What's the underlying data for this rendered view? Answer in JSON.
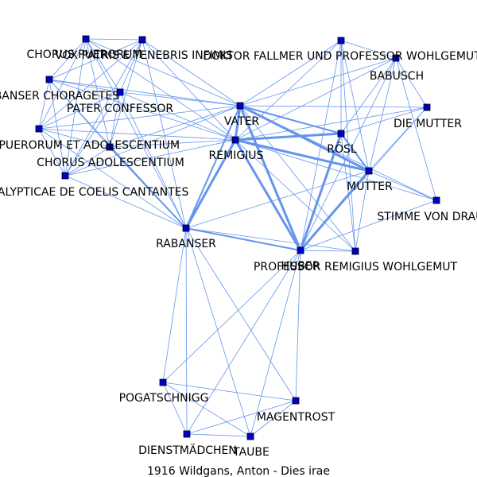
{
  "caption": "1916  Wildgans,  Anton  -  Dies  irae",
  "colors": {
    "edge": "#6495ed",
    "node_fill": "#0000cd",
    "node_stroke": "#000000"
  },
  "nodes": [
    {
      "id": "chorus_puerorum",
      "label": "CHORUS PUERORUM"
    },
    {
      "id": "vox_patris",
      "label": "VOX PATRIS E TENEBRIS INFIMIS"
    },
    {
      "id": "doktor_fallmer",
      "label": "DOKTOR FALLMER UND PROFESSOR WOHLGEMUT"
    },
    {
      "id": "babusch",
      "label": "BABUSCH"
    },
    {
      "id": "rabanser_choragetes",
      "label": "RABANSER CHORAGETES"
    },
    {
      "id": "pater_confessor",
      "label": "PATER CONFESSOR"
    },
    {
      "id": "vater",
      "label": "VATER"
    },
    {
      "id": "die_mutter",
      "label": "DIE MUTTER"
    },
    {
      "id": "chorus_puerorum_adolescentium",
      "label": "CHORUS PUERORUM ET ADOLESCENTIUM"
    },
    {
      "id": "remigius",
      "label": "REMIGIUS"
    },
    {
      "id": "rosl",
      "label": "RÖSL"
    },
    {
      "id": "chorus_adolescentium",
      "label": "CHORUS ADOLESCENTIUM"
    },
    {
      "id": "mutter",
      "label": "MUTTER"
    },
    {
      "id": "apokalypticae",
      "label": "VOCES APOKALYPTICAE DE COELIS CANTANTES"
    },
    {
      "id": "stimme",
      "label": "STIMME VON DRAUSSEN"
    },
    {
      "id": "rabanser",
      "label": "RABANSER"
    },
    {
      "id": "huber",
      "label": "HUBER"
    },
    {
      "id": "prof_remigius",
      "label": "PROFESSOR REMIGIUS WOHLGEMUT"
    },
    {
      "id": "pogatschnigg",
      "label": "POGATSCHNIGG"
    },
    {
      "id": "magentrost",
      "label": "MAGENTROST"
    },
    {
      "id": "dienstmaedchen",
      "label": "DIENSTMÄDCHEN"
    },
    {
      "id": "taube",
      "label": "TAUBE"
    }
  ],
  "edges": [
    [
      "chorus_puerorum",
      "vox_patris",
      1
    ],
    [
      "chorus_puerorum",
      "rabanser_choragetes",
      1
    ],
    [
      "chorus_puerorum",
      "pater_confessor",
      1
    ],
    [
      "chorus_puerorum",
      "vater",
      1
    ],
    [
      "chorus_puerorum",
      "remigius",
      1
    ],
    [
      "chorus_puerorum",
      "chorus_puerorum_adolescentium",
      1
    ],
    [
      "chorus_puerorum",
      "chorus_adolescentium",
      1
    ],
    [
      "chorus_puerorum",
      "apokalypticae",
      1
    ],
    [
      "chorus_puerorum",
      "rabanser",
      1
    ],
    [
      "vox_patris",
      "rabanser_choragetes",
      1
    ],
    [
      "vox_patris",
      "pater_confessor",
      1
    ],
    [
      "vox_patris",
      "vater",
      1
    ],
    [
      "vox_patris",
      "remigius",
      1
    ],
    [
      "vox_patris",
      "chorus_puerorum_adolescentium",
      1
    ],
    [
      "vox_patris",
      "chorus_adolescentium",
      1
    ],
    [
      "vox_patris",
      "apokalypticae",
      1
    ],
    [
      "vox_patris",
      "rabanser",
      1
    ],
    [
      "rabanser_choragetes",
      "pater_confessor",
      1
    ],
    [
      "rabanser_choragetes",
      "vater",
      1
    ],
    [
      "rabanser_choragetes",
      "remigius",
      1
    ],
    [
      "rabanser_choragetes",
      "chorus_puerorum_adolescentium",
      1
    ],
    [
      "rabanser_choragetes",
      "chorus_adolescentium",
      1
    ],
    [
      "rabanser_choragetes",
      "apokalypticae",
      1
    ],
    [
      "rabanser_choragetes",
      "rabanser",
      1
    ],
    [
      "pater_confessor",
      "vater",
      1
    ],
    [
      "pater_confessor",
      "remigius",
      1
    ],
    [
      "pater_confessor",
      "chorus_puerorum_adolescentium",
      1
    ],
    [
      "pater_confessor",
      "chorus_adolescentium",
      1
    ],
    [
      "pater_confessor",
      "apokalypticae",
      1
    ],
    [
      "pater_confessor",
      "rabanser",
      1
    ],
    [
      "chorus_puerorum_adolescentium",
      "chorus_adolescentium",
      1
    ],
    [
      "chorus_puerorum_adolescentium",
      "apokalypticae",
      1
    ],
    [
      "chorus_puerorum_adolescentium",
      "remigius",
      1
    ],
    [
      "chorus_puerorum_adolescentium",
      "vater",
      1
    ],
    [
      "chorus_puerorum_adolescentium",
      "rabanser",
      1
    ],
    [
      "chorus_adolescentium",
      "apokalypticae",
      1
    ],
    [
      "chorus_adolescentium",
      "remigius",
      1
    ],
    [
      "chorus_adolescentium",
      "vater",
      1
    ],
    [
      "chorus_adolescentium",
      "rabanser",
      2
    ],
    [
      "apokalypticae",
      "remigius",
      1
    ],
    [
      "apokalypticae",
      "vater",
      1
    ],
    [
      "apokalypticae",
      "rabanser",
      1
    ],
    [
      "doktor_fallmer",
      "babusch",
      1
    ],
    [
      "doktor_fallmer",
      "vater",
      1
    ],
    [
      "doktor_fallmer",
      "rosl",
      1
    ],
    [
      "doktor_fallmer",
      "mutter",
      1
    ],
    [
      "doktor_fallmer",
      "remigius",
      1
    ],
    [
      "doktor_fallmer",
      "huber",
      1
    ],
    [
      "doktor_fallmer",
      "prof_remigius",
      1
    ],
    [
      "babusch",
      "vater",
      1
    ],
    [
      "babusch",
      "die_mutter",
      1
    ],
    [
      "babusch",
      "rosl",
      1
    ],
    [
      "babusch",
      "mutter",
      1
    ],
    [
      "babusch",
      "remigius",
      1
    ],
    [
      "babusch",
      "huber",
      1
    ],
    [
      "babusch",
      "stimme",
      1
    ],
    [
      "vater",
      "die_mutter",
      1
    ],
    [
      "vater",
      "remigius",
      3
    ],
    [
      "vater",
      "rosl",
      2
    ],
    [
      "vater",
      "mutter",
      3
    ],
    [
      "vater",
      "rabanser",
      2
    ],
    [
      "vater",
      "huber",
      3
    ],
    [
      "vater",
      "prof_remigius",
      1
    ],
    [
      "vater",
      "stimme",
      1
    ],
    [
      "die_mutter",
      "remigius",
      1
    ],
    [
      "die_mutter",
      "rosl",
      1
    ],
    [
      "die_mutter",
      "mutter",
      1
    ],
    [
      "die_mutter",
      "huber",
      1
    ],
    [
      "remigius",
      "rosl",
      3
    ],
    [
      "remigius",
      "mutter",
      3
    ],
    [
      "remigius",
      "rabanser",
      3
    ],
    [
      "remigius",
      "huber",
      3
    ],
    [
      "remigius",
      "prof_remigius",
      1
    ],
    [
      "remigius",
      "stimme",
      1
    ],
    [
      "rosl",
      "mutter",
      2
    ],
    [
      "rosl",
      "huber",
      3
    ],
    [
      "rosl",
      "prof_remigius",
      1
    ],
    [
      "mutter",
      "huber",
      3
    ],
    [
      "mutter",
      "rabanser",
      1
    ],
    [
      "mutter",
      "stimme",
      1
    ],
    [
      "mutter",
      "prof_remigius",
      1
    ],
    [
      "huber",
      "stimme",
      1
    ],
    [
      "huber",
      "rabanser",
      2
    ],
    [
      "huber",
      "prof_remigius",
      1
    ],
    [
      "huber",
      "pogatschnigg",
      1
    ],
    [
      "huber",
      "magentrost",
      1
    ],
    [
      "huber",
      "dienstmaedchen",
      1
    ],
    [
      "huber",
      "taube",
      1
    ],
    [
      "rabanser",
      "prof_remigius",
      1
    ],
    [
      "rabanser",
      "pogatschnigg",
      1
    ],
    [
      "rabanser",
      "dienstmaedchen",
      1
    ],
    [
      "rabanser",
      "taube",
      1
    ],
    [
      "rabanser",
      "magentrost",
      1
    ],
    [
      "pogatschnigg",
      "magentrost",
      1
    ],
    [
      "pogatschnigg",
      "dienstmaedchen",
      1
    ],
    [
      "pogatschnigg",
      "taube",
      1
    ],
    [
      "magentrost",
      "dienstmaedchen",
      1
    ],
    [
      "magentrost",
      "taube",
      1
    ],
    [
      "dienstmaedchen",
      "taube",
      1
    ]
  ]
}
